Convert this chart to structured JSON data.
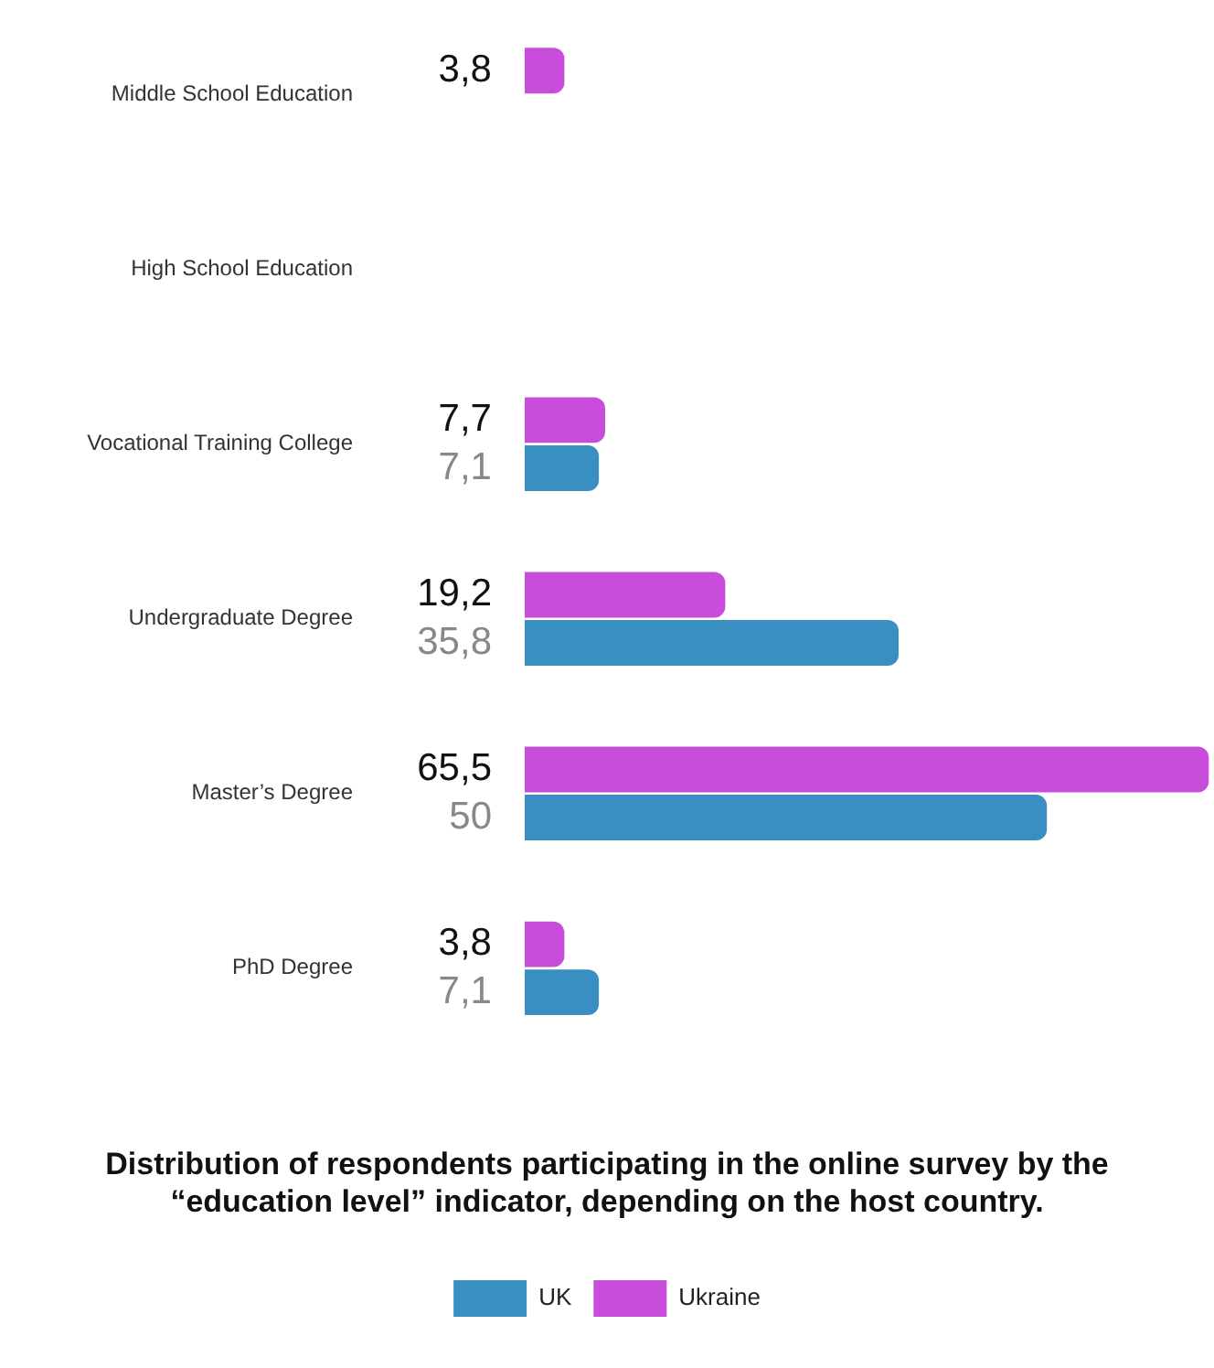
{
  "chart_data": {
    "type": "bar",
    "orientation": "horizontal",
    "title": "Distribution of respondents participating in the online survey by the “education level” indicator, depending on the host country.",
    "categories": [
      "Middle School Education",
      "High School Education",
      "Vocational Training College",
      "Undergraduate Degree",
      "Master’s Degree",
      "PhD Degree"
    ],
    "series": [
      {
        "name": "Ukraine",
        "color": "#c94ddb",
        "values": [
          3.8,
          null,
          7.7,
          19.2,
          65.5,
          3.8
        ],
        "value_labels": [
          "3,8",
          null,
          "7,7",
          "19,2",
          "65,5",
          "3,8"
        ]
      },
      {
        "name": "UK",
        "color": "#3a8fc2",
        "values": [
          null,
          null,
          7.1,
          35.8,
          50,
          7.1
        ],
        "value_labels": [
          null,
          null,
          "7,1",
          "35,8",
          "50",
          "7,1"
        ]
      }
    ],
    "xlim": [
      0,
      66
    ],
    "tick_labels": "y",
    "legend": "bottom"
  }
}
